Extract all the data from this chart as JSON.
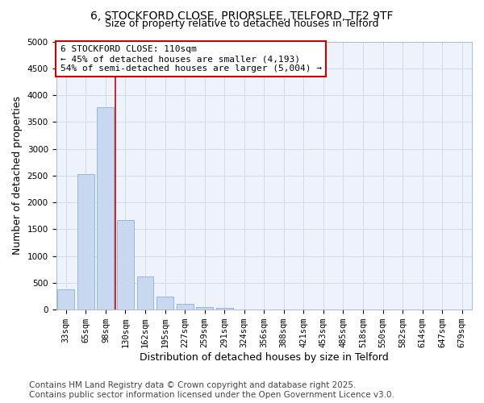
{
  "title_line1": "6, STOCKFORD CLOSE, PRIORSLEE, TELFORD, TF2 9TF",
  "title_line2": "Size of property relative to detached houses in Telford",
  "xlabel": "Distribution of detached houses by size in Telford",
  "ylabel": "Number of detached properties",
  "categories": [
    "33sqm",
    "65sqm",
    "98sqm",
    "130sqm",
    "162sqm",
    "195sqm",
    "227sqm",
    "259sqm",
    "291sqm",
    "324sqm",
    "356sqm",
    "388sqm",
    "421sqm",
    "453sqm",
    "485sqm",
    "518sqm",
    "550sqm",
    "582sqm",
    "614sqm",
    "647sqm",
    "679sqm"
  ],
  "values": [
    380,
    2530,
    3780,
    1670,
    620,
    240,
    105,
    55,
    40,
    0,
    0,
    0,
    0,
    0,
    0,
    0,
    0,
    0,
    0,
    0,
    0
  ],
  "bar_color": "#c8d8ee",
  "bar_edgecolor": "#8ab0d8",
  "grid_color": "#d0dcea",
  "annotation_text": "6 STOCKFORD CLOSE: 110sqm\n← 45% of detached houses are smaller (4,193)\n54% of semi-detached houses are larger (5,004) →",
  "annotation_box_edgecolor": "#cc0000",
  "vline_x": 2.5,
  "vline_color": "#cc0000",
  "ylim": [
    0,
    5000
  ],
  "yticks": [
    0,
    500,
    1000,
    1500,
    2000,
    2500,
    3000,
    3500,
    4000,
    4500,
    5000
  ],
  "footnote_line1": "Contains HM Land Registry data © Crown copyright and database right 2025.",
  "footnote_line2": "Contains public sector information licensed under the Open Government Licence v3.0.",
  "fig_bg_color": "#ffffff",
  "plot_bg_color": "#eef2fb",
  "title_fontsize": 10,
  "subtitle_fontsize": 9,
  "axis_label_fontsize": 9,
  "tick_fontsize": 7.5,
  "annotation_fontsize": 8,
  "footnote_fontsize": 7.5
}
